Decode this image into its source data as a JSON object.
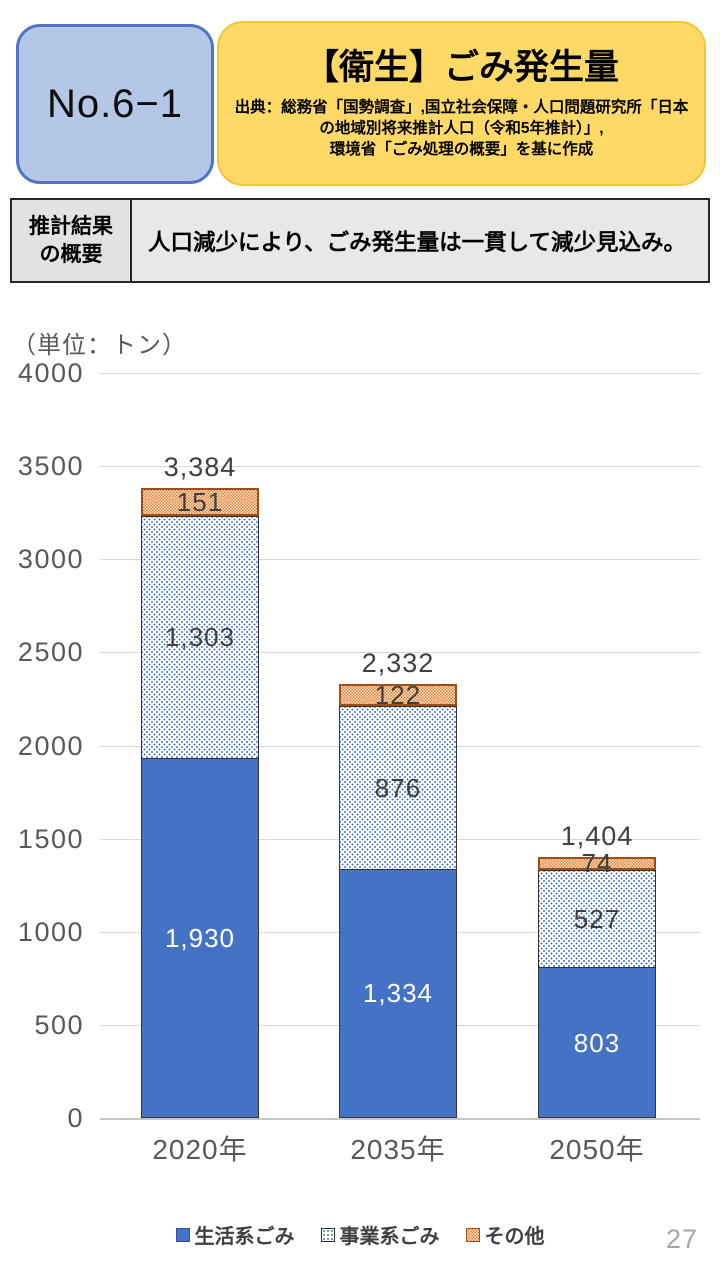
{
  "header": {
    "no_label": "No.6−1",
    "title": "【衛生】ごみ発生量",
    "source_lines": [
      "出典：総務省「国勢調査」,国立社会保障・人口問題研究所「日本",
      "の地域別将来推計人口（令和5年推計）」,",
      "環境省「ごみ処理の概要」を基に作成"
    ],
    "colors": {
      "no_box_fill": "#b4c7e7",
      "no_box_border": "#4f74c2",
      "title_box_fill": "#ffd966"
    }
  },
  "summary_table": {
    "header_lines": [
      "推計結果",
      "の概要"
    ],
    "body_cell": "人口減少により、ごみ発生量は一貫して減少見込み。"
  },
  "chart_data": {
    "type": "bar",
    "stacked": true,
    "unit_label": "（単位：トン）",
    "categories": [
      "2020年",
      "2035年",
      "2050年"
    ],
    "series": [
      {
        "name": "生活系ごみ",
        "style": "solid-blue",
        "color": "#4472c4",
        "values": [
          1930,
          1334,
          803
        ],
        "labels": [
          "1,930",
          "1,334",
          "803"
        ]
      },
      {
        "name": "事業系ごみ",
        "style": "dotted",
        "color": "#4472c4",
        "values": [
          1303,
          876,
          527
        ],
        "labels": [
          "1,303",
          "876",
          "527"
        ]
      },
      {
        "name": "その他",
        "style": "orange-hatch",
        "color": "#ed9455",
        "values": [
          151,
          122,
          74
        ],
        "labels": [
          "151",
          "122",
          "74"
        ]
      }
    ],
    "totals": [
      3384,
      2332,
      1404
    ],
    "total_labels": [
      "3,384",
      "2,332",
      "1,404"
    ],
    "ylim": [
      0,
      4000
    ],
    "ytick_step": 500,
    "grid": true,
    "legend_position": "bottom"
  },
  "page": {
    "number": "27"
  }
}
